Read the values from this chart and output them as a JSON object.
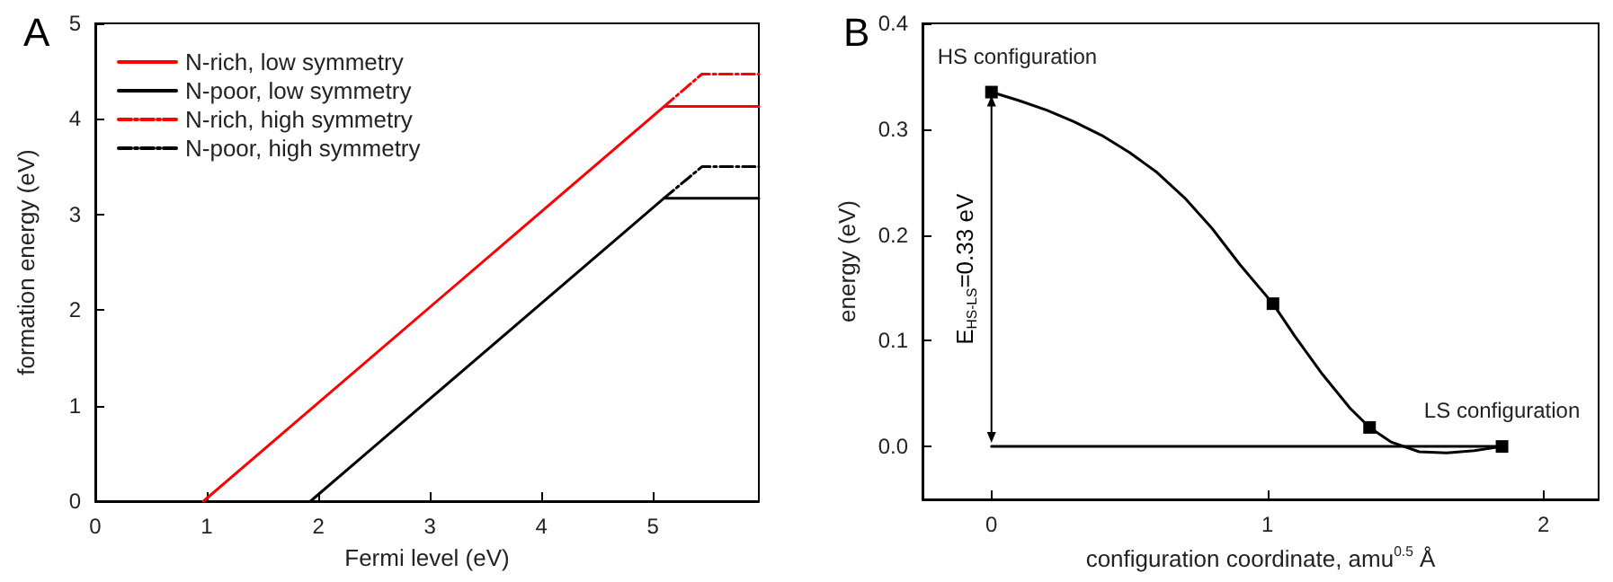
{
  "chart_data": [
    {
      "type": "line",
      "title": "A",
      "xlabel": "Fermi level (eV)",
      "ylabel": "formation energy (eV)",
      "xlim": [
        0,
        5.95
      ],
      "ylim": [
        0,
        5
      ],
      "xticks": [
        0,
        1,
        2,
        3,
        4,
        5
      ],
      "yticks": [
        0,
        1,
        2,
        3,
        4,
        5
      ],
      "legend": "top left",
      "marker": "none",
      "series": [
        {
          "name": "N-rich, low symmetry",
          "color": "#ff0000",
          "x": [
            0.97,
            5.1,
            5.95
          ],
          "values": [
            0,
            4.13,
            4.13
          ],
          "line_style": "solid"
        },
        {
          "name": "N-poor, low symmetry",
          "color": "#000000",
          "x": [
            1.93,
            5.1,
            5.95
          ],
          "values": [
            0,
            3.17,
            3.17
          ],
          "line_style": "solid"
        },
        {
          "name": "N-rich, high symmetry",
          "color": "#ff0000",
          "x": [
            5.1,
            5.44,
            5.95
          ],
          "values": [
            4.13,
            4.47,
            4.47
          ],
          "line_style": "dashed"
        },
        {
          "name": "N-poor, high symmetry",
          "color": "#000000",
          "x": [
            5.1,
            5.44,
            5.95
          ],
          "values": [
            3.17,
            3.5,
            3.5
          ],
          "line_style": "dashed"
        }
      ]
    },
    {
      "type": "line",
      "title": "B",
      "xlabel": "configuration coordinate, amu$^{0.5}$ Å",
      "ylabel": "energy (eV)",
      "xlim": [
        -0.25,
        2.2
      ],
      "ylim": [
        -0.05,
        0.4
      ],
      "xticks": [
        0,
        1,
        2
      ],
      "yticks": [
        {
          "value": 0,
          "label": "0.0"
        },
        {
          "value": 0.1,
          "label": "0.1"
        },
        {
          "value": 0.2,
          "label": "0.2"
        },
        {
          "value": 0.3,
          "label": "0.3"
        },
        {
          "value": 0.4,
          "label": "0.4"
        }
      ],
      "marker": "none",
      "series": [
        {
          "color": "#000000",
          "x": [
            0,
            0.1,
            0.2,
            0.3,
            0.4,
            0.5,
            0.6,
            0.7,
            0.8,
            0.9,
            1.02,
            1.1,
            1.2,
            1.3,
            1.37,
            1.45,
            1.55,
            1.65,
            1.75,
            1.85
          ],
          "values": [
            0.335,
            0.327,
            0.318,
            0.307,
            0.294,
            0.278,
            0.259,
            0.235,
            0.206,
            0.172,
            0.135,
            0.104,
            0.068,
            0.036,
            0.018,
            0.004,
            -0.005,
            -0.006,
            -0.004,
            0
          ]
        },
        {
          "type": "scatter",
          "color": "#000000",
          "x": [
            0,
            1.02,
            1.37,
            1.85
          ],
          "values": [
            0.335,
            0.135,
            0.018,
            0
          ],
          "marker": "square"
        },
        {
          "color": "#000000",
          "x": [
            0,
            1.85
          ],
          "values": [
            0,
            0
          ]
        }
      ],
      "annotations": [
        {
          "text": "HS configuration",
          "x": 0,
          "y": 0.335
        },
        {
          "text": "LS configuration",
          "x": 1.85,
          "y": 0
        },
        "E$_{HS-LS}$=0.33 eV"
      ]
    }
  ]
}
